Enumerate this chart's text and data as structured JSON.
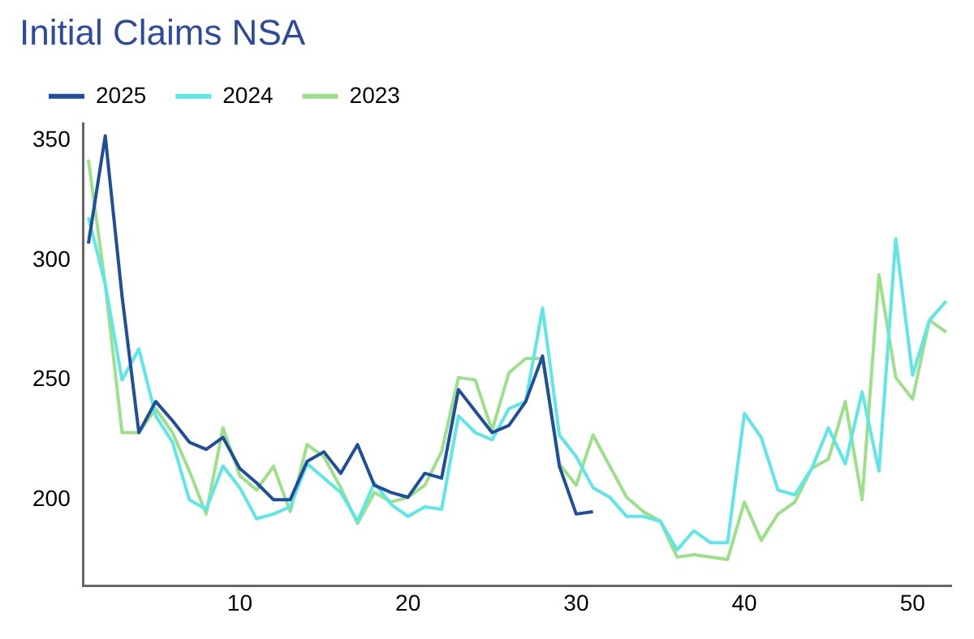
{
  "chart_data": {
    "type": "line",
    "title": "Initial Claims NSA",
    "x": [
      1,
      2,
      3,
      4,
      5,
      6,
      7,
      8,
      9,
      10,
      11,
      12,
      13,
      14,
      15,
      16,
      17,
      18,
      19,
      20,
      21,
      22,
      23,
      24,
      25,
      26,
      27,
      28,
      29,
      30,
      31,
      32,
      33,
      34,
      35,
      36,
      37,
      38,
      39,
      40,
      41,
      42,
      43,
      44,
      45,
      46,
      47,
      48,
      49,
      50,
      51,
      52
    ],
    "series": [
      {
        "name": "2025",
        "color": "#1f4e9c",
        "values": [
          307,
          352,
          285,
          228,
          241,
          233,
          224,
          221,
          226,
          213,
          207,
          200,
          200,
          216,
          220,
          211,
          223,
          206,
          203,
          201,
          211,
          209,
          246,
          237,
          228,
          231,
          241,
          260,
          214,
          194,
          195,
          null,
          null,
          null,
          null,
          null,
          null,
          null,
          null,
          null,
          null,
          null,
          null,
          null,
          null,
          null,
          null,
          null,
          null,
          null,
          null,
          null
        ]
      },
      {
        "name": "2024",
        "color": "#5ee6e8",
        "values": [
          318,
          290,
          250,
          263,
          235,
          224,
          200,
          196,
          214,
          205,
          192,
          194,
          197,
          215,
          209,
          203,
          191,
          207,
          198,
          193,
          197,
          196,
          235,
          228,
          225,
          238,
          241,
          280,
          227,
          218,
          205,
          201,
          193,
          193,
          191,
          179,
          187,
          182,
          182,
          236,
          226,
          204,
          202,
          213,
          230,
          215,
          245,
          212,
          309,
          252,
          275,
          283
        ]
      },
      {
        "name": "2023",
        "color": "#9de08a",
        "values": [
          342,
          290,
          228,
          228,
          238,
          228,
          212,
          194,
          230,
          210,
          204,
          214,
          195,
          223,
          218,
          205,
          190,
          203,
          199,
          201,
          206,
          220,
          251,
          250,
          229,
          253,
          259,
          259,
          215,
          206,
          227,
          214,
          201,
          195,
          191,
          176,
          177,
          176,
          175,
          199,
          183,
          194,
          199,
          213,
          217,
          241,
          200,
          294,
          251,
          242,
          275,
          270
        ]
      }
    ],
    "xlim": [
      0.7,
      52.3
    ],
    "xticks": [
      10,
      20,
      30,
      40,
      50
    ],
    "ylim": [
      164,
      357
    ],
    "yticks": [
      200,
      250,
      300,
      350
    ],
    "grid": false,
    "legend": "top left",
    "marker": "none",
    "line_style": "solid"
  }
}
